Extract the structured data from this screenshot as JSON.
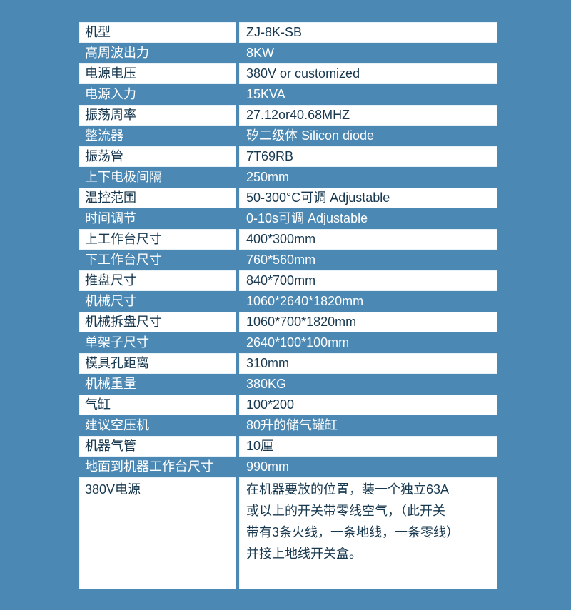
{
  "page": {
    "background_color": "#4b88b3",
    "row_text_color": "#17384f",
    "inverse_text_color": "#ffffff"
  },
  "table": {
    "rows": [
      {
        "label": "机型",
        "value": "ZJ-8K-SB"
      },
      {
        "label": "高周波出力",
        "value": "8KW"
      },
      {
        "label": "电源电压",
        "value": "380V or customized"
      },
      {
        "label": "电源入力",
        "value": "15KVA"
      },
      {
        "label": "振荡周率",
        "value": "27.12or40.68MHZ"
      },
      {
        "label": "整流器",
        "value": "矽二级体 Silicon diode"
      },
      {
        "label": "振荡管",
        "value": "7T69RB"
      },
      {
        "label": "上下电极间隔",
        "value": "250mm"
      },
      {
        "label": "温控范围",
        "value": "50-300°C可调 Adjustable"
      },
      {
        "label": "时间调节",
        "value": "0-10s可调 Adjustable"
      },
      {
        "label": "上工作台尺寸",
        "value": "400*300mm"
      },
      {
        "label": "下工作台尺寸",
        "value": "760*560mm"
      },
      {
        "label": "推盘尺寸",
        "value": "840*700mm"
      },
      {
        "label": "机械尺寸",
        "value": "1060*2640*1820mm"
      },
      {
        "label": "机械拆盘尺寸",
        "value": "1060*700*1820mm"
      },
      {
        "label": "单架子尺寸",
        "value": "2640*100*100mm"
      },
      {
        "label": "模具孔距离",
        "value": "310mm"
      },
      {
        "label": "机械重量",
        "value": "380KG"
      },
      {
        "label": "气缸",
        "value": "100*200"
      },
      {
        "label": "建议空压机",
        "value": "80升的储气罐缸"
      },
      {
        "label": "机器气管",
        "value": "10厘"
      },
      {
        "label": "地面到机器工作台尺寸",
        "value": "990mm"
      },
      {
        "label": "380V电源",
        "value": "在机器要放的位置，装一个独立63A\n或以上的开关带零线空气，（此开关\n带有3条火线，一条地线，一条零线）\n并接上地线开关盒。"
      }
    ]
  }
}
